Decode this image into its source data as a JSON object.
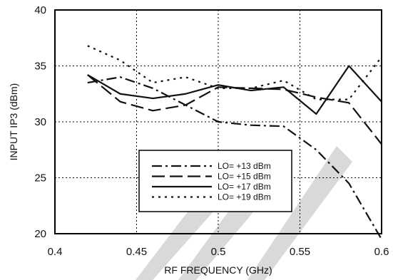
{
  "chart_data": {
    "type": "line",
    "xlabel": "RF FREQUENCY (GHz)",
    "ylabel": "INPUT  IP3 (dBm)",
    "xlim": [
      0.4,
      0.6
    ],
    "ylim": [
      20,
      40
    ],
    "x_ticks": [
      0.4,
      0.45,
      0.5,
      0.55,
      0.6
    ],
    "x_tick_labels": [
      "0.4",
      "0.45",
      "0.5",
      "0.55",
      "0.6"
    ],
    "y_ticks": [
      20,
      25,
      30,
      35,
      40
    ],
    "y_tick_labels": [
      "20",
      "25",
      "30",
      "35",
      "40"
    ],
    "grid": true,
    "legend_position": "center-right",
    "series": [
      {
        "name": "LO= +13 dBm",
        "style": "dash-dot",
        "x": [
          0.42,
          0.44,
          0.46,
          0.48,
          0.5,
          0.52,
          0.54,
          0.56,
          0.58,
          0.6
        ],
        "y": [
          33.5,
          34.0,
          33.0,
          31.5,
          30.0,
          29.7,
          29.6,
          27.5,
          24.5,
          19.5
        ]
      },
      {
        "name": "LO= +15 dBm",
        "style": "long-dash",
        "x": [
          0.42,
          0.44,
          0.46,
          0.48,
          0.5,
          0.52,
          0.54,
          0.56,
          0.58,
          0.6
        ],
        "y": [
          34.2,
          31.8,
          31.0,
          31.5,
          33.1,
          33.0,
          32.9,
          32.2,
          31.7,
          28.0
        ]
      },
      {
        "name": "LO= +17 dBm",
        "style": "solid",
        "x": [
          0.42,
          0.44,
          0.46,
          0.48,
          0.5,
          0.52,
          0.54,
          0.56,
          0.58,
          0.6
        ],
        "y": [
          34.2,
          32.5,
          32.1,
          32.5,
          33.3,
          32.8,
          33.1,
          30.7,
          35.0,
          31.8
        ]
      },
      {
        "name": "LO= +19 dBm",
        "style": "dotted",
        "x": [
          0.42,
          0.44,
          0.46,
          0.48,
          0.5,
          0.52,
          0.54,
          0.56,
          0.58,
          0.6
        ],
        "y": [
          36.8,
          35.5,
          33.5,
          34.0,
          33.0,
          33.0,
          33.7,
          32.0,
          32.0,
          35.8
        ]
      }
    ]
  },
  "colors": {
    "line": "#111111",
    "grid": "#000000",
    "watermark": "#d9d9d9"
  }
}
